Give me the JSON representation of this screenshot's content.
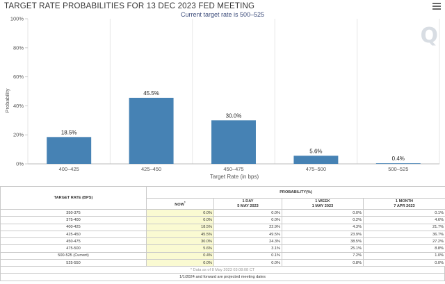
{
  "title": "TARGET RATE PROBABILITIES FOR 13 DEC 2023 FED MEETING",
  "subtitle": "Current target rate is 500–525",
  "watermark": "Q",
  "chart_data": {
    "type": "bar",
    "title": "TARGET RATE PROBABILITIES FOR 13 DEC 2023 FED MEETING",
    "subtitle": "Current target rate is 500–525",
    "xlabel": "Target Rate (in bps)",
    "ylabel": "Probability",
    "categories": [
      "400–425",
      "425–450",
      "450–475",
      "475–500",
      "500–525"
    ],
    "values": [
      18.5,
      45.5,
      30.0,
      5.6,
      0.4
    ],
    "data_labels": [
      "18.5%",
      "45.5%",
      "30.0%",
      "5.6%",
      "0.4%"
    ],
    "ylim": [
      0,
      100
    ],
    "yticks": [
      0,
      20,
      40,
      60,
      80,
      100
    ],
    "ytick_labels": [
      "0%",
      "20%",
      "40%",
      "60%",
      "80%",
      "100%"
    ],
    "bar_color": "#4682b4",
    "grid": "vertical"
  },
  "table": {
    "target_header": "TARGET RATE (BPS)",
    "prob_header": "PROBABILITY(%)",
    "columns": [
      {
        "line1": "NOW",
        "line2": "",
        "sup": "*"
      },
      {
        "line1": "1 DAY",
        "line2": "5 MAY 2023"
      },
      {
        "line1": "1 WEEK",
        "line2": "1 MAY 2023"
      },
      {
        "line1": "1 MONTH",
        "line2": "7 APR 2023"
      }
    ],
    "rows": [
      {
        "rate": "350-375",
        "values": [
          "0.0%",
          "0.0%",
          "0.0%",
          "0.1%"
        ]
      },
      {
        "rate": "375-400",
        "values": [
          "0.0%",
          "0.0%",
          "0.2%",
          "4.6%"
        ]
      },
      {
        "rate": "400-425",
        "values": [
          "18.5%",
          "22.9%",
          "4.3%",
          "21.7%"
        ]
      },
      {
        "rate": "425-450",
        "values": [
          "45.5%",
          "49.5%",
          "23.9%",
          "36.7%"
        ]
      },
      {
        "rate": "450-475",
        "values": [
          "30.0%",
          "24.3%",
          "38.5%",
          "27.2%"
        ]
      },
      {
        "rate": "475-500",
        "values": [
          "5.6%",
          "3.1%",
          "25.1%",
          "8.8%"
        ]
      },
      {
        "rate": "500-525 (Current)",
        "values": [
          "0.4%",
          "0.1%",
          "7.2%",
          "1.0%"
        ]
      },
      {
        "rate": "525-550",
        "values": [
          "0.0%",
          "0.0%",
          "0.8%",
          "0.0%"
        ]
      }
    ],
    "data_as_of": "* Data as of 8 May 2023 03:08:08 CT",
    "footnote": "1/1/2024 and forward are projected meeting dates"
  }
}
